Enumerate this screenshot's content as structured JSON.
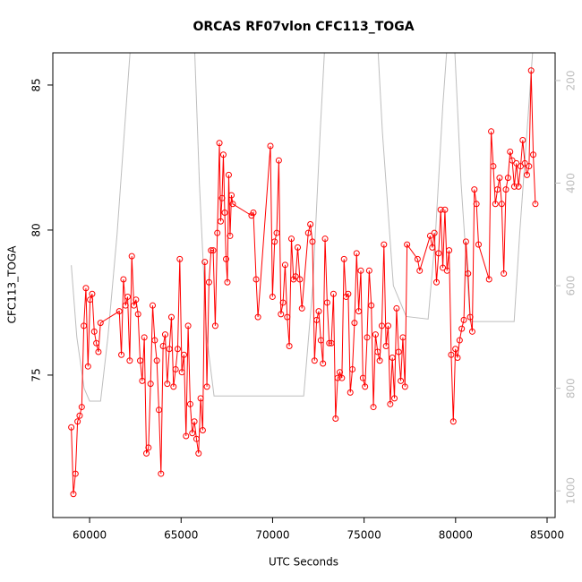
{
  "chart_data": {
    "type": "line",
    "title": "ORCAS RF07vlon CFC113_TOGA",
    "xlabel": "UTC Seconds",
    "ylabel": "CFC113_TOGA",
    "xlim": [
      57990,
      85440
    ],
    "xticks": [
      60000,
      65000,
      70000,
      75000,
      80000,
      85000
    ],
    "ylim": [
      70.09,
      86.11
    ],
    "yticks": [
      75,
      80,
      85
    ],
    "y2lim": [
      1052,
      146
    ],
    "y2ticks": [
      200,
      400,
      600,
      800,
      1000
    ],
    "series": [
      {
        "color": "#ff0000",
        "markers": true,
        "x": [
          59000,
          59114,
          59228,
          59342,
          59456,
          59570,
          59684,
          59798,
          59912,
          60026,
          60140,
          60254,
          60368,
          60482,
          60596,
          61622,
          61736,
          61850,
          61964,
          62078,
          62192,
          62306,
          62420,
          62534,
          62648,
          62762,
          62876,
          62990,
          63104,
          63218,
          63332,
          63446,
          63560,
          63674,
          63788,
          63902,
          64016,
          64130,
          64244,
          64358,
          64472,
          64586,
          64700,
          64814,
          64928,
          65042,
          65156,
          65270,
          65384,
          65498,
          65612,
          65726,
          65840,
          65954,
          66068,
          66182,
          66296,
          66410,
          66524,
          66638,
          66752,
          66866,
          66980,
          67094,
          67163,
          67237,
          67310,
          67384,
          67457,
          67530,
          67604,
          67677,
          67751,
          67824,
          68850,
          68950,
          69100,
          69200,
          69880,
          69995,
          70110,
          70225,
          70340,
          70455,
          70569,
          70684,
          70799,
          70914,
          71029,
          71144,
          71259,
          71374,
          71489,
          71604,
          71948,
          72063,
          72178,
          72293,
          72408,
          72523,
          72638,
          72753,
          72867,
          72982,
          73097,
          73212,
          73327,
          73442,
          73557,
          73672,
          73787,
          73902,
          74016,
          74131,
          74246,
          74361,
          74476,
          74591,
          74706,
          74821,
          74936,
          75051,
          75165,
          75280,
          75395,
          75510,
          75625,
          75740,
          75855,
          75970,
          76085,
          76200,
          76314,
          76429,
          76544,
          76659,
          76774,
          76889,
          77004,
          77119,
          77234,
          77349,
          77923,
          78038,
          78612,
          78727,
          78842,
          78957,
          79072,
          79187,
          79302,
          79417,
          79532,
          79646,
          79761,
          79876,
          79991,
          80106,
          80221,
          80336,
          80451,
          80566,
          80681,
          80796,
          80911,
          81026,
          81141,
          81256,
          81830,
          81945,
          82060,
          82175,
          82290,
          82405,
          82520,
          82635,
          82750,
          82865,
          82980,
          83095,
          83210,
          83325,
          83440,
          83554,
          83669,
          83784,
          83899,
          84014,
          84129,
          84244,
          84359
        ],
        "values": [
          73.2,
          70.9,
          71.6,
          73.4,
          73.6,
          73.9,
          76.7,
          78.0,
          75.3,
          77.6,
          77.8,
          76.5,
          76.1,
          75.8,
          76.8,
          77.2,
          75.7,
          78.3,
          77.4,
          77.7,
          75.5,
          79.1,
          77.4,
          77.6,
          77.1,
          75.5,
          74.8,
          76.3,
          72.3,
          72.5,
          74.7,
          77.4,
          76.2,
          75.5,
          73.8,
          71.6,
          76.0,
          76.4,
          74.7,
          75.9,
          77.0,
          74.6,
          75.2,
          75.9,
          79.0,
          75.1,
          75.7,
          72.9,
          76.7,
          74.0,
          73.0,
          73.4,
          72.8,
          72.3,
          74.2,
          73.1,
          78.9,
          74.6,
          78.2,
          79.3,
          79.3,
          76.7,
          79.9,
          83.0,
          80.3,
          81.1,
          82.6,
          80.6,
          79.0,
          78.2,
          81.9,
          79.8,
          81.2,
          80.9,
          80.5,
          80.6,
          78.3,
          77.0,
          82.9,
          77.7,
          79.6,
          79.9,
          82.4,
          77.1,
          77.5,
          78.8,
          77.0,
          76.0,
          79.7,
          78.3,
          78.4,
          79.4,
          78.3,
          77.3,
          79.9,
          80.2,
          79.6,
          75.5,
          76.9,
          77.2,
          76.2,
          75.4,
          79.7,
          77.5,
          76.1,
          76.1,
          77.8,
          73.5,
          74.9,
          75.1,
          74.9,
          79.0,
          77.7,
          77.8,
          74.4,
          75.2,
          76.8,
          79.2,
          77.2,
          78.6,
          74.9,
          74.6,
          76.3,
          78.6,
          77.4,
          73.9,
          76.4,
          75.8,
          75.5,
          76.7,
          79.5,
          76.0,
          76.7,
          74.0,
          75.6,
          74.2,
          77.3,
          75.8,
          74.8,
          76.3,
          74.6,
          79.5,
          79.0,
          78.6,
          79.8,
          79.4,
          79.9,
          78.2,
          79.2,
          80.7,
          78.7,
          80.7,
          78.6,
          79.3,
          75.7,
          73.4,
          75.9,
          75.6,
          76.2,
          76.6,
          76.9,
          79.6,
          78.5,
          77.0,
          76.5,
          81.4,
          80.9,
          79.5,
          78.3,
          83.4,
          82.2,
          80.9,
          81.4,
          81.8,
          80.9,
          78.5,
          81.4,
          81.8,
          82.7,
          82.4,
          81.5,
          82.3,
          81.5,
          82.2,
          83.1,
          82.3,
          81.9,
          82.2,
          85.5,
          82.6,
          80.9
        ]
      },
      {
        "color": "#bebebe",
        "axis": "y2",
        "markers": false,
        "x": [
          59000,
          59300,
          59700,
          60000,
          60600,
          61000,
          61500,
          62000,
          62300,
          65700,
          66000,
          66400,
          66800,
          71700,
          72200,
          72600,
          72900,
          75700,
          76000,
          76600,
          77300,
          78500,
          78900,
          79300,
          79600,
          79900,
          80300,
          80800,
          83200,
          83500,
          84000,
          84300
        ],
        "values": [
          560,
          700,
          800,
          825,
          825,
          700,
          500,
          250,
          100,
          100,
          400,
          700,
          815,
          815,
          600,
          300,
          100,
          100,
          300,
          600,
          660,
          665,
          500,
          250,
          100,
          100,
          400,
          670,
          670,
          500,
          250,
          100
        ]
      }
    ]
  }
}
